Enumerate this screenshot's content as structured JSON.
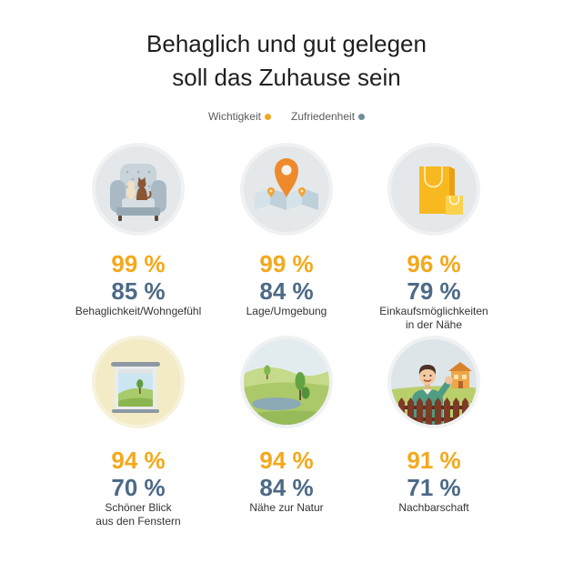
{
  "chart_data": {
    "type": "table",
    "title": "Behaglich und gut gelegen\nsoll das Zuhause sein",
    "unit": "%",
    "legend": "top-center",
    "categories": [
      "Behaglichkeit/Wohngefühl",
      "Lage/Umgebung",
      "Einkaufsmöglichkeiten\nin der Nähe",
      "Schöner Blick\naus den Fenstern",
      "Nähe zur Natur",
      "Nachbarschaft"
    ],
    "series": [
      {
        "name": "Wichtigkeit",
        "color": "#f4a81d",
        "dot_color": "#f4a81d",
        "values": [
          99,
          99,
          96,
          94,
          94,
          91
        ]
      },
      {
        "name": "Zufriedenheit",
        "color": "#4d6a86",
        "dot_color": "#6f8d96",
        "values": [
          85,
          84,
          79,
          70,
          84,
          71
        ]
      }
    ]
  },
  "category_icons": [
    "armchair-icon",
    "map-pin-icon",
    "shopping-bags-icon",
    "window-view-icon",
    "nature-landscape-icon",
    "neighbor-waving-icon"
  ]
}
